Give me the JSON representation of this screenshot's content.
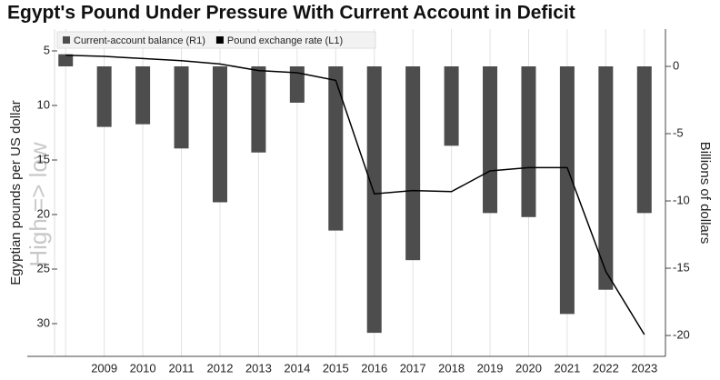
{
  "chart_data": {
    "type": "bar",
    "title": "Egypt's Pound Under Pressure With Current Account in Deficit",
    "ylabel": "Egyptian pounds per US dollar",
    "y2label": "Billions of dollars",
    "annotation": "High => low",
    "categories": [
      null,
      "2009",
      "2010",
      "2011",
      "2012",
      "2013",
      "2014",
      "2015",
      "2016",
      "2017",
      "2018",
      "2019",
      "2020",
      "2021",
      "2022",
      "2023"
    ],
    "series": [
      {
        "name": "Current-account balance (R1)",
        "type": "bar",
        "axis": "y2",
        "color": "#4d4d4d",
        "values": [
          0.9,
          -4.5,
          -4.3,
          -6.1,
          -10.1,
          -6.4,
          -2.7,
          -12.2,
          -19.8,
          -14.4,
          -5.9,
          -10.9,
          -11.2,
          -18.4,
          -16.6,
          -10.9
        ]
      },
      {
        "name": "Pound exchange rate (L1)",
        "type": "line",
        "axis": "y",
        "color": "#000000",
        "values": [
          5.4,
          5.5,
          5.7,
          5.9,
          6.2,
          6.8,
          7.0,
          7.7,
          18.1,
          17.8,
          17.9,
          16.0,
          15.7,
          15.7,
          25.2,
          31.0
        ]
      }
    ],
    "ylim": [
      3,
      33
    ],
    "y_inverted": true,
    "yticks": [
      5,
      10,
      15,
      20,
      25,
      30
    ],
    "y2lim": [
      -21.55,
      2.77
    ],
    "y2ticks": [
      0,
      -5,
      -10,
      -15,
      -20
    ],
    "grid": true,
    "legend": "top-left"
  }
}
